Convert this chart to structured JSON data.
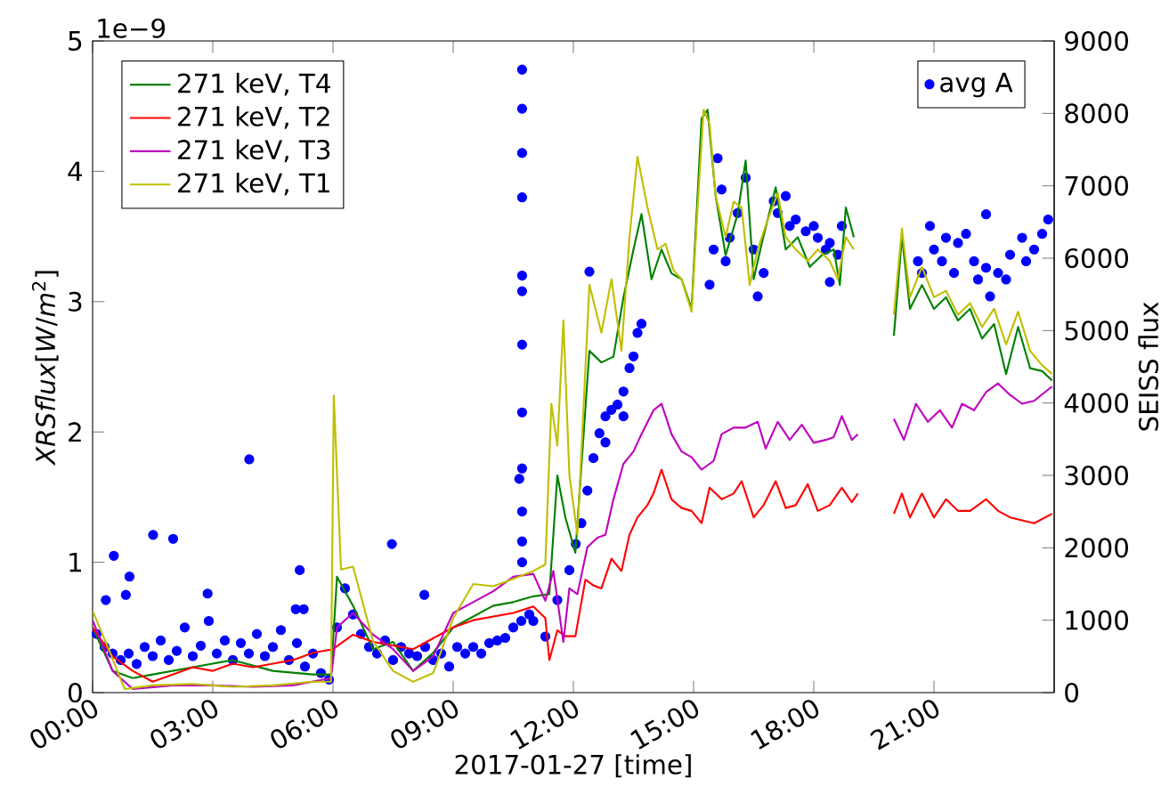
{
  "chart_data": {
    "type": "line",
    "xlabel": "2017-01-27 [time]",
    "ylabel": "*XRSflux*[*W*/*m*$^{2}$]",
    "y2label": "SEISS flux",
    "annotations": [
      "1e−9"
    ],
    "xlim": [
      0,
      24
    ],
    "xticks": [
      {
        "value": 0,
        "label": "00:00"
      },
      {
        "value": 3,
        "label": "03:00"
      },
      {
        "value": 6,
        "label": "06:00"
      },
      {
        "value": 9,
        "label": "09:00"
      },
      {
        "value": 12,
        "label": "12:00"
      },
      {
        "value": 15,
        "label": "15:00"
      },
      {
        "value": 18,
        "label": "18:00"
      },
      {
        "value": 21,
        "label": "21:00"
      }
    ],
    "ylim": [
      0,
      5
    ],
    "yticks": [
      0,
      1,
      2,
      3,
      4,
      5
    ],
    "y2lim": [
      0,
      9000
    ],
    "y2ticks": [
      0,
      1000,
      2000,
      3000,
      4000,
      5000,
      6000,
      7000,
      8000,
      9000
    ],
    "legend": "top left",
    "series": [
      {
        "name": "271 keV, T4",
        "color": "#008000",
        "axis": "y2",
        "x": [
          0,
          0.5,
          1,
          1.5,
          2.5,
          3.5,
          4.5,
          5.5,
          5.95,
          6.1,
          6.5,
          7,
          7.5,
          8,
          8.5,
          9,
          9.5,
          10,
          10.5,
          11,
          11.4,
          11.6,
          11.8,
          12.05,
          12.4,
          12.7,
          13.0,
          13.25,
          13.5,
          13.7,
          13.95,
          14.2,
          14.45,
          14.7,
          14.95,
          15.2,
          15.35,
          15.55,
          15.8,
          16.1,
          16.3,
          16.5,
          16.7,
          17.05,
          17.3,
          17.6,
          17.9,
          18.2,
          18.5,
          18.65,
          18.8,
          19.0,
          19.5,
          20.0,
          20.2,
          20.4,
          20.7,
          21.0,
          21.3,
          21.6,
          21.9,
          22.2,
          22.5,
          22.8,
          23.1,
          23.4,
          23.7,
          23.95
        ],
        "values": [
          900,
          300,
          200,
          250,
          350,
          450,
          300,
          250,
          250,
          1600,
          1200,
          600,
          700,
          300,
          550,
          900,
          1050,
          1200,
          1250,
          1330,
          1360,
          3000,
          2420,
          1930,
          4720,
          4560,
          4640,
          5460,
          6120,
          6610,
          5710,
          6120,
          5790,
          5710,
          5300,
          7930,
          8050,
          6860,
          6040,
          6610,
          7350,
          5710,
          6200,
          6980,
          6120,
          6290,
          5880,
          6040,
          6120,
          5630,
          6700,
          6290,
          null,
          4930,
          6300,
          5300,
          5630,
          5300,
          5460,
          5140,
          5300,
          4890,
          5090,
          4400,
          5050,
          4480,
          4440,
          4310
        ]
      },
      {
        "name": "271 keV, T2",
        "color": "#ff0000",
        "axis": "y2",
        "x": [
          0,
          0.5,
          1,
          1.5,
          2,
          2.5,
          3,
          3.5,
          4,
          4.5,
          5,
          5.5,
          6,
          6.5,
          7,
          7.5,
          8,
          8.5,
          9,
          9.5,
          10,
          10.5,
          11.0,
          11.3,
          11.4,
          11.6,
          11.8,
          12.05,
          12.3,
          12.5,
          12.7,
          12.95,
          13.2,
          13.4,
          13.6,
          13.85,
          14.0,
          14.2,
          14.45,
          14.7,
          14.95,
          15.2,
          15.4,
          15.7,
          16.0,
          16.2,
          16.5,
          16.75,
          17.05,
          17.3,
          17.55,
          17.85,
          18.1,
          18.4,
          18.7,
          18.95,
          19.1,
          19.5,
          20.0,
          20.2,
          20.4,
          20.7,
          21.0,
          21.3,
          21.6,
          21.9,
          22.3,
          22.6,
          22.9,
          23.2,
          23.5,
          23.95
        ],
        "values": [
          900,
          500,
          300,
          150,
          250,
          350,
          300,
          400,
          350,
          400,
          450,
          550,
          600,
          800,
          700,
          650,
          600,
          750,
          900,
          1000,
          1050,
          1100,
          1190,
          1030,
          450,
          860,
          780,
          780,
          1560,
          1480,
          1440,
          1850,
          1680,
          2180,
          2420,
          2590,
          2750,
          3080,
          2670,
          2550,
          2510,
          2340,
          2830,
          2670,
          2750,
          2920,
          2420,
          2590,
          2920,
          2550,
          2590,
          2880,
          2510,
          2590,
          2830,
          2630,
          2750,
          null,
          2470,
          2750,
          2420,
          2750,
          2420,
          2670,
          2510,
          2510,
          2670,
          2510,
          2420,
          2380,
          2340,
          2470
        ]
      },
      {
        "name": "271 keV, T3",
        "color": "#bf00bf",
        "axis": "y2",
        "x": [
          0,
          0.5,
          1,
          2,
          3,
          4,
          5,
          5.95,
          6.1,
          6.5,
          7,
          7.5,
          8,
          8.5,
          9,
          9.5,
          10,
          10.5,
          11.0,
          11.3,
          11.5,
          11.75,
          11.9,
          12.1,
          12.35,
          12.6,
          12.8,
          13.0,
          13.25,
          13.5,
          13.7,
          14.0,
          14.2,
          14.45,
          14.7,
          14.95,
          15.2,
          15.5,
          15.7,
          16.0,
          16.3,
          16.6,
          16.8,
          17.1,
          17.4,
          17.7,
          18.0,
          18.3,
          18.5,
          18.7,
          18.95,
          19.1,
          19.5,
          20.0,
          20.25,
          20.55,
          20.85,
          21.15,
          21.45,
          21.7,
          22.0,
          22.3,
          22.6,
          22.9,
          23.2,
          23.5,
          23.95
        ],
        "values": [
          1000,
          300,
          50,
          100,
          100,
          80,
          100,
          200,
          900,
          1100,
          800,
          600,
          300,
          500,
          1100,
          1250,
          1400,
          1600,
          1640,
          1270,
          1680,
          700,
          1440,
          1360,
          2010,
          2140,
          2180,
          2670,
          3160,
          3330,
          3570,
          3900,
          3990,
          3570,
          3330,
          3250,
          3080,
          3200,
          3570,
          3660,
          3660,
          3740,
          3370,
          3740,
          3490,
          3700,
          3450,
          3490,
          3530,
          3820,
          3490,
          3570,
          null,
          3780,
          3490,
          3990,
          3740,
          3900,
          3660,
          3990,
          3900,
          4150,
          4270,
          4110,
          3990,
          4030,
          4230
        ]
      },
      {
        "name": "271 keV, T1",
        "color": "#bfbf00",
        "axis": "y2",
        "x": [
          0,
          0.4,
          0.8,
          1.5,
          2.5,
          3.5,
          4.5,
          5.5,
          5.95,
          6.02,
          6.2,
          6.5,
          7,
          7.5,
          8,
          8.5,
          9,
          9.5,
          10,
          10.5,
          11.0,
          11.3,
          11.45,
          11.6,
          11.75,
          11.9,
          12.1,
          12.4,
          12.7,
          12.95,
          13.2,
          13.4,
          13.6,
          13.85,
          14.1,
          14.3,
          14.5,
          14.7,
          14.95,
          15.1,
          15.25,
          15.4,
          15.55,
          15.8,
          16.0,
          16.2,
          16.4,
          16.6,
          16.8,
          17.1,
          17.3,
          17.55,
          17.85,
          18.1,
          18.4,
          18.6,
          18.8,
          19.0,
          19.5,
          20.0,
          20.2,
          20.4,
          20.7,
          21.0,
          21.3,
          21.6,
          21.9,
          22.2,
          22.5,
          22.8,
          23.1,
          23.4,
          23.7,
          23.95
        ],
        "values": [
          1130,
          600,
          50,
          100,
          120,
          80,
          100,
          150,
          150,
          4100,
          1700,
          1740,
          710,
          300,
          150,
          270,
          1030,
          1500,
          1470,
          1570,
          1680,
          1770,
          3990,
          3410,
          5140,
          3000,
          2180,
          5630,
          4970,
          5710,
          4720,
          6290,
          7400,
          6700,
          6120,
          6200,
          5830,
          5710,
          5260,
          6700,
          8050,
          7850,
          6860,
          6290,
          6780,
          6700,
          5630,
          6120,
          6450,
          6900,
          6290,
          6120,
          5960,
          6120,
          5960,
          5710,
          6290,
          6120,
          null,
          5220,
          6410,
          5460,
          5880,
          5460,
          5550,
          5220,
          5380,
          5050,
          5300,
          4810,
          5260,
          4720,
          4520,
          4400
        ]
      },
      {
        "name": "avg A",
        "type": "scatter",
        "marker": "circle",
        "color": "#0000ff",
        "axis": "y",
        "x": [
          0.1,
          0.3,
          0.33,
          0.5,
          0.53,
          0.7,
          0.83,
          0.9,
          0.92,
          1.1,
          1.3,
          1.5,
          1.51,
          1.7,
          1.9,
          2.01,
          2.1,
          2.3,
          2.5,
          2.7,
          2.87,
          2.9,
          3.1,
          3.3,
          3.5,
          3.7,
          3.9,
          3.91,
          4.1,
          4.3,
          4.5,
          4.7,
          4.9,
          5.07,
          5.1,
          5.17,
          5.27,
          5.3,
          5.5,
          5.7,
          5.9,
          6.1,
          6.3,
          6.5,
          6.7,
          6.9,
          7.1,
          7.3,
          7.47,
          7.5,
          7.7,
          7.9,
          8.1,
          8.28,
          8.3,
          8.5,
          8.7,
          8.9,
          9.1,
          9.3,
          9.5,
          9.7,
          9.9,
          10.1,
          10.3,
          10.5,
          10.7,
          10.9,
          10.72,
          10.72,
          10.72,
          10.72,
          10.72,
          10.72,
          10.72,
          10.72,
          10.72,
          10.72,
          10.72,
          10.72,
          10.65,
          11.0,
          11.3,
          11.6,
          11.9,
          12.06,
          12.2,
          12.35,
          12.4,
          12.5,
          12.65,
          12.8,
          12.8,
          12.95,
          13.1,
          13.25,
          13.25,
          13.4,
          13.5,
          13.6,
          13.7,
          15.4,
          15.5,
          15.6,
          15.7,
          15.8,
          15.9,
          16.1,
          16.3,
          16.5,
          16.6,
          16.75,
          17.0,
          17.1,
          17.3,
          17.4,
          17.55,
          17.8,
          18.0,
          18.1,
          18.3,
          18.4,
          18.4,
          18.6,
          18.7,
          20.6,
          20.7,
          20.9,
          21.0,
          21.2,
          21.3,
          21.5,
          21.6,
          21.8,
          22.0,
          22.1,
          22.3,
          22.3,
          22.4,
          22.6,
          22.8,
          22.9,
          23.2,
          23.3,
          23.5,
          23.7,
          23.85
        ],
        "values": [
          0.45,
          0.35,
          0.71,
          0.3,
          1.05,
          0.25,
          0.75,
          0.3,
          0.89,
          0.22,
          0.35,
          0.28,
          1.21,
          0.4,
          0.25,
          1.18,
          0.32,
          0.5,
          0.28,
          0.36,
          0.76,
          0.55,
          0.3,
          0.4,
          0.25,
          0.38,
          0.3,
          1.79,
          0.45,
          0.28,
          0.35,
          0.48,
          0.25,
          0.64,
          0.38,
          0.94,
          0.64,
          0.2,
          0.3,
          0.15,
          0.1,
          0.5,
          0.8,
          0.6,
          0.45,
          0.35,
          0.3,
          0.4,
          1.14,
          0.25,
          0.35,
          0.3,
          0.28,
          0.75,
          0.35,
          0.25,
          0.3,
          0.2,
          0.35,
          0.3,
          0.35,
          0.3,
          0.38,
          0.4,
          0.42,
          0.5,
          0.55,
          0.6,
          4.78,
          4.48,
          4.14,
          3.8,
          3.2,
          3.08,
          2.67,
          2.15,
          1.72,
          1.39,
          1.16,
          1.0,
          1.64,
          0.55,
          0.43,
          0.71,
          0.94,
          1.14,
          1.3,
          1.55,
          3.23,
          1.8,
          1.99,
          2.12,
          1.92,
          2.17,
          2.21,
          2.31,
          2.12,
          2.49,
          2.58,
          2.76,
          2.83,
          3.13,
          3.4,
          4.1,
          3.86,
          3.31,
          3.49,
          3.68,
          3.95,
          3.4,
          3.04,
          3.22,
          3.77,
          3.68,
          3.81,
          3.58,
          3.63,
          3.54,
          3.58,
          3.49,
          3.4,
          3.45,
          3.15,
          3.36,
          3.58,
          3.31,
          3.22,
          3.58,
          3.4,
          3.31,
          3.49,
          3.22,
          3.45,
          3.52,
          3.31,
          3.17,
          3.26,
          3.67,
          3.04,
          3.22,
          3.17,
          3.36,
          3.49,
          3.31,
          3.4,
          3.52,
          3.63
        ]
      }
    ]
  }
}
